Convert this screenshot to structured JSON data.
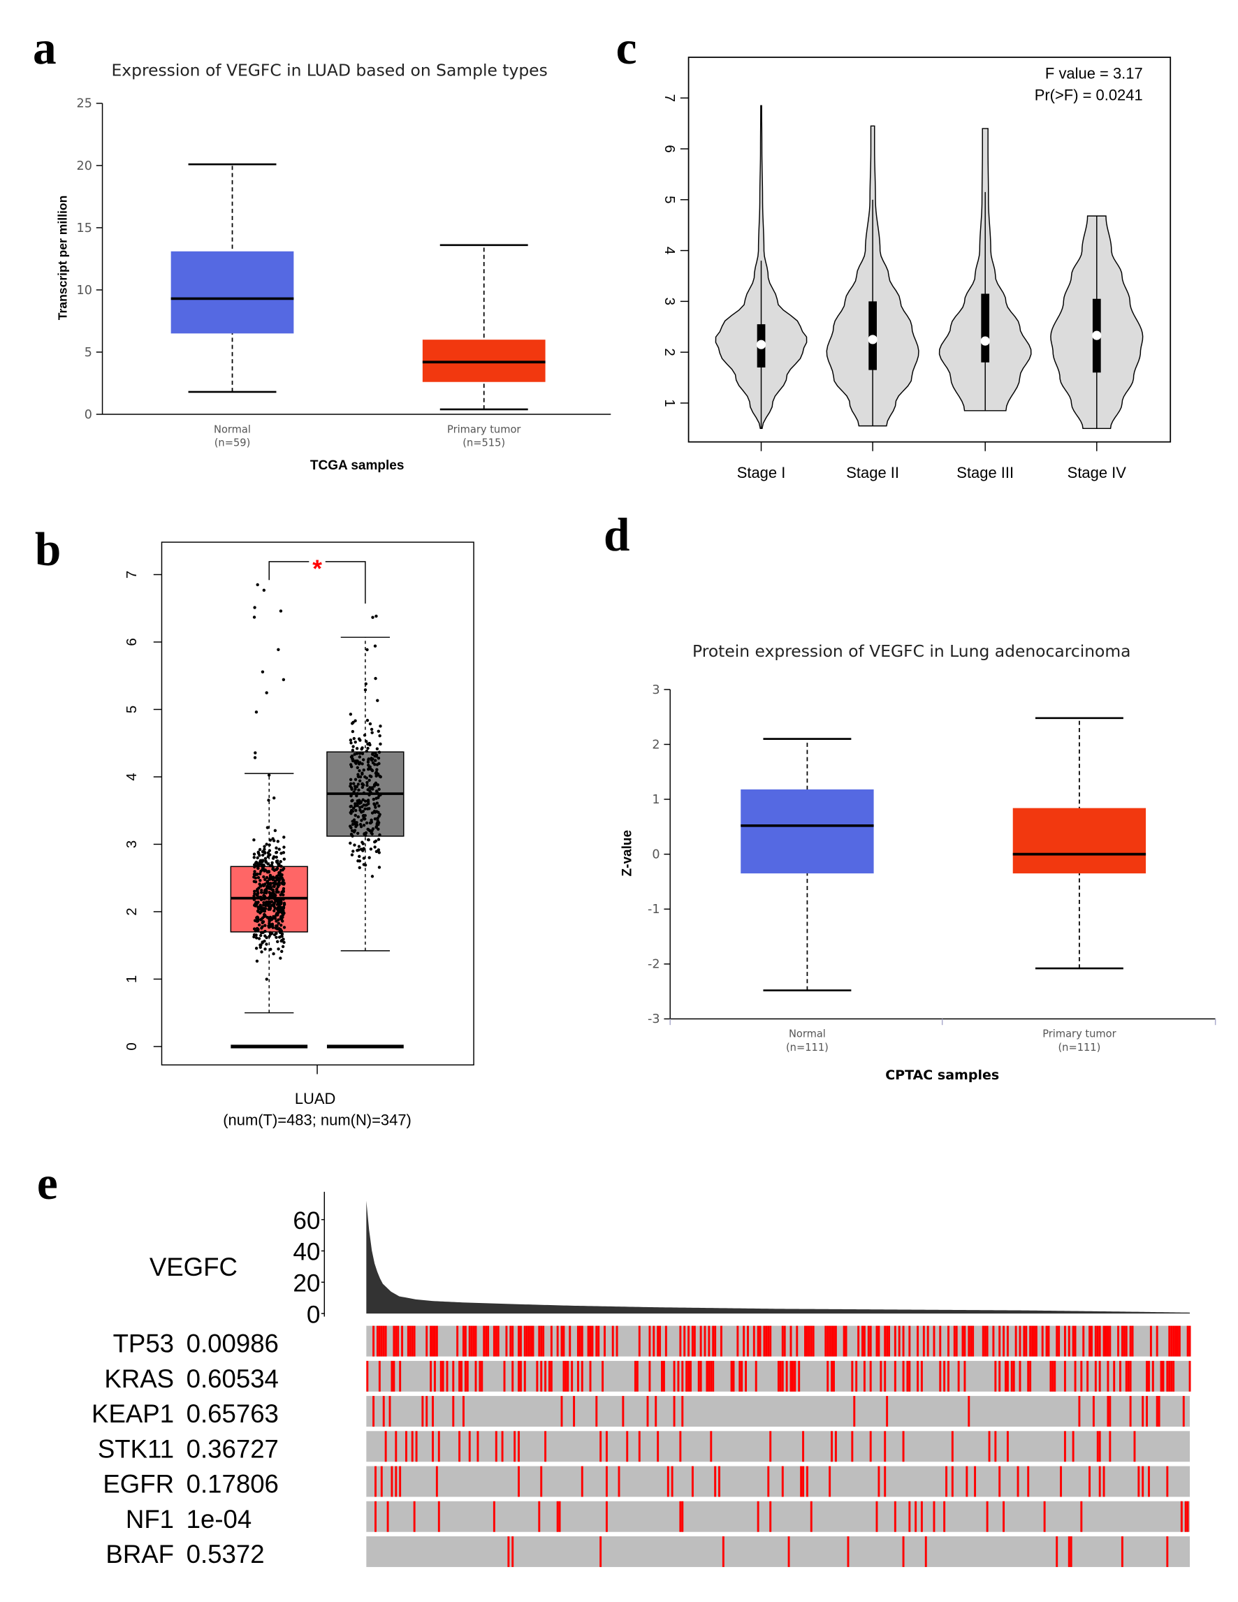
{
  "panel_labels": {
    "a": "a",
    "b": "b",
    "c": "c",
    "d": "d",
    "e": "e"
  },
  "chart_data": [
    {
      "panel": "a",
      "type": "box",
      "title": "Expression of VEGFC in LUAD based on Sample types",
      "xlabel": "TCGA samples",
      "ylabel": "Transcript per million",
      "ylim": [
        0,
        25
      ],
      "yticks": [
        "0",
        "5",
        "10",
        "15",
        "20",
        "25"
      ],
      "categories": [
        {
          "label": "Normal",
          "n": "(n=59)",
          "color": "#5569E2",
          "min": 1.8,
          "q1": 6.5,
          "median": 9.3,
          "q3": 13.1,
          "max": 20.1
        },
        {
          "label": "Primary tumor",
          "n": "(n=515)",
          "color": "#F2380F",
          "min": 0.4,
          "q1": 2.6,
          "median": 4.2,
          "q3": 6.0,
          "max": 13.6
        }
      ]
    },
    {
      "panel": "b",
      "type": "box-jitter",
      "xlabel": "LUAD",
      "xsublabel": "(num(T)=483; num(N)=347)",
      "ylim": [
        0,
        7
      ],
      "yticks": [
        "0",
        "1",
        "2",
        "3",
        "4",
        "5",
        "6",
        "7"
      ],
      "significance": "*",
      "significance_color": "#FF0000",
      "groups": [
        {
          "name": "T",
          "color": "#FF6666",
          "min": 0.5,
          "q1": 1.7,
          "median": 2.2,
          "q3": 2.67,
          "max": 4.05
        },
        {
          "name": "N",
          "color": "#808080",
          "min": 1.42,
          "q1": 3.12,
          "median": 3.75,
          "q3": 4.37,
          "max": 6.07
        }
      ]
    },
    {
      "panel": "c",
      "type": "violin",
      "ylim": [
        0.3,
        7.8
      ],
      "yticks": [
        "1",
        "2",
        "3",
        "4",
        "5",
        "6",
        "7"
      ],
      "annotation": [
        "F value = 3.17",
        "Pr(>F) = 0.0241"
      ],
      "fill": "#DCDCDC",
      "categories": [
        {
          "label": "Stage I",
          "min": 0.5,
          "max": 6.85,
          "q1": 1.7,
          "median": 2.15,
          "q3": 2.55,
          "whisker_high": 3.8,
          "density": [
            [
              0.5,
              0.02
            ],
            [
              1,
              0.25
            ],
            [
              1.5,
              0.55
            ],
            [
              2,
              0.9
            ],
            [
              2.25,
              1.0
            ],
            [
              2.5,
              0.85
            ],
            [
              3,
              0.35
            ],
            [
              3.5,
              0.15
            ],
            [
              4,
              0.06
            ],
            [
              5,
              0.03
            ],
            [
              6,
              0.015
            ],
            [
              6.85,
              0.01
            ]
          ]
        },
        {
          "label": "Stage II",
          "min": 0.55,
          "max": 6.45,
          "q1": 1.65,
          "median": 2.25,
          "q3": 3.0,
          "whisker_high": 5.0,
          "density": [
            [
              0.55,
              0.3
            ],
            [
              1,
              0.5
            ],
            [
              1.5,
              0.85
            ],
            [
              2,
              1.0
            ],
            [
              2.5,
              0.85
            ],
            [
              3,
              0.6
            ],
            [
              3.5,
              0.35
            ],
            [
              4,
              0.16
            ],
            [
              5,
              0.06
            ],
            [
              6,
              0.04
            ],
            [
              6.45,
              0.04
            ]
          ]
        },
        {
          "label": "Stage III",
          "min": 0.85,
          "max": 6.4,
          "q1": 1.8,
          "median": 2.22,
          "q3": 3.15,
          "whisker_high": 5.15,
          "density": [
            [
              0.85,
              0.45
            ],
            [
              1.5,
              0.75
            ],
            [
              2,
              1.0
            ],
            [
              2.5,
              0.75
            ],
            [
              3,
              0.45
            ],
            [
              3.5,
              0.22
            ],
            [
              4,
              0.12
            ],
            [
              5,
              0.07
            ],
            [
              6,
              0.06
            ],
            [
              6.4,
              0.06
            ]
          ]
        },
        {
          "label": "Stage IV",
          "min": 0.5,
          "max": 4.68,
          "q1": 1.6,
          "median": 2.33,
          "q3": 3.05,
          "whisker_high": 4.68,
          "density": [
            [
              0.5,
              0.3
            ],
            [
              1,
              0.55
            ],
            [
              1.5,
              0.8
            ],
            [
              2,
              0.95
            ],
            [
              2.3,
              1.0
            ],
            [
              3,
              0.72
            ],
            [
              3.5,
              0.55
            ],
            [
              4,
              0.32
            ],
            [
              4.68,
              0.2
            ]
          ]
        }
      ]
    },
    {
      "panel": "d",
      "type": "box",
      "title": "Protein expression of VEGFC in Lung adenocarcinoma",
      "xlabel": "CPTAC samples",
      "ylabel": "Z-value",
      "ylim": [
        -3,
        3
      ],
      "yticks": [
        "-3",
        "-2",
        "-1",
        "0",
        "1",
        "2",
        "3"
      ],
      "categories": [
        {
          "label": "Normal",
          "n": "(n=111)",
          "color": "#5569E2",
          "min": -2.48,
          "q1": -0.35,
          "median": 0.52,
          "q3": 1.18,
          "max": 2.1
        },
        {
          "label": "Primary tumor",
          "n": "(n=111)",
          "color": "#F2380F",
          "min": -2.08,
          "q1": -0.35,
          "median": 0.0,
          "q3": 0.84,
          "max": 2.48
        }
      ]
    },
    {
      "panel": "e",
      "type": "oncoprint",
      "gene": "VEGFC",
      "yticks": [
        "0",
        "20",
        "40",
        "60"
      ],
      "ylim": [
        0,
        75
      ],
      "expression_profile": [
        [
          0,
          72
        ],
        [
          0.003,
          55
        ],
        [
          0.006,
          42
        ],
        [
          0.01,
          32
        ],
        [
          0.015,
          24
        ],
        [
          0.02,
          19
        ],
        [
          0.03,
          14
        ],
        [
          0.04,
          11
        ],
        [
          0.06,
          9
        ],
        [
          0.08,
          8
        ],
        [
          0.12,
          7
        ],
        [
          0.18,
          6
        ],
        [
          0.25,
          5
        ],
        [
          0.35,
          4
        ],
        [
          0.5,
          3
        ],
        [
          0.65,
          2.5
        ],
        [
          0.8,
          2
        ],
        [
          0.92,
          1.2
        ],
        [
          1,
          0.6
        ]
      ],
      "bar_color": "#333333",
      "mutation_color": "#FF0000",
      "background_color": "#BEBEBE",
      "rows": [
        {
          "gene": "TP53",
          "p": "0.00986"
        },
        {
          "gene": "KRAS",
          "p": "0.60534"
        },
        {
          "gene": "KEAP1",
          "p": "0.65763"
        },
        {
          "gene": "STK11",
          "p": "0.36727"
        },
        {
          "gene": "EGFR",
          "p": "0.17806"
        },
        {
          "gene": "NF1",
          "p": "1e-04"
        },
        {
          "gene": "BRAF",
          "p": "0.5372"
        }
      ]
    }
  ]
}
